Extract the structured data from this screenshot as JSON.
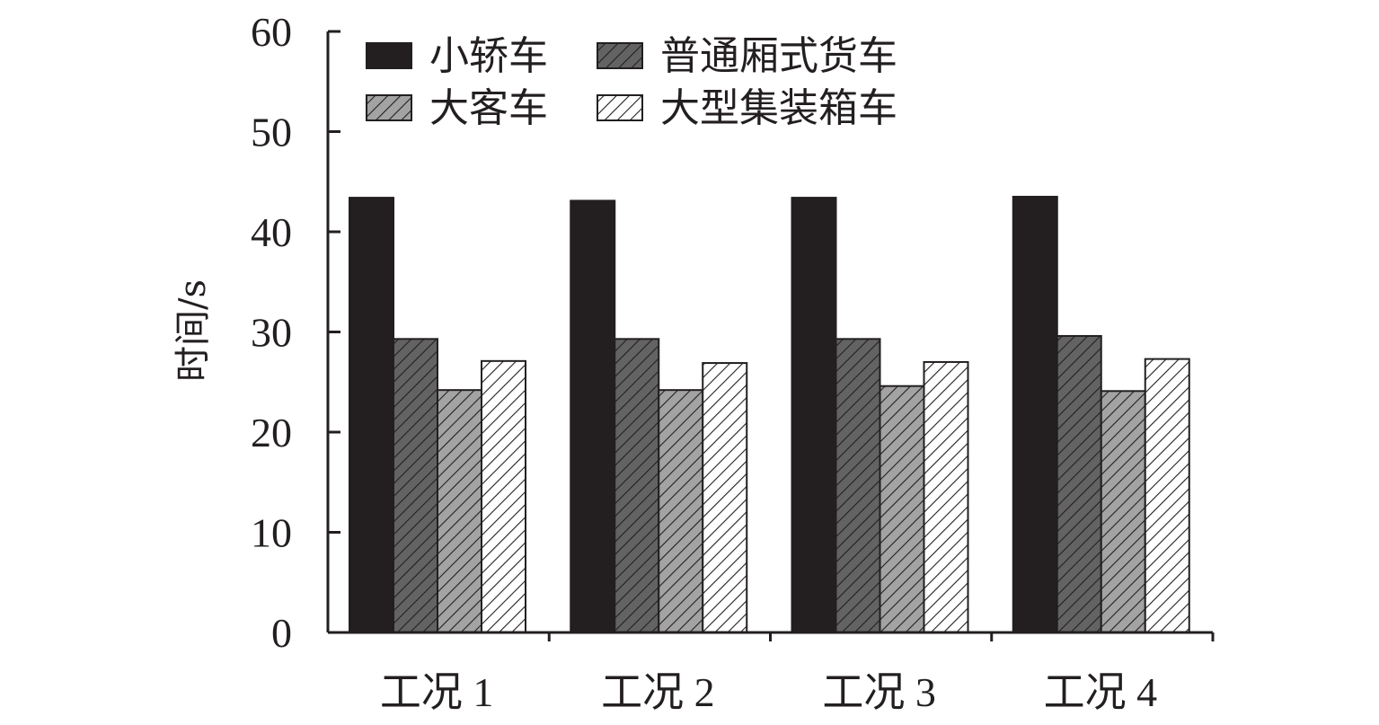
{
  "chart_data": {
    "type": "bar",
    "title": "",
    "xlabel": "",
    "ylabel": "时间/s",
    "ylim": [
      0,
      60
    ],
    "yticks": [
      "0",
      "10",
      "20",
      "30",
      "40",
      "50",
      "60"
    ],
    "categories": [
      "工况 1",
      "工况 2",
      "工况 3",
      "工况 4"
    ],
    "series": [
      {
        "name": "小轿车",
        "color": "#231f20",
        "pattern": "solid",
        "values": [
          43.4,
          43.1,
          43.4,
          43.5
        ]
      },
      {
        "name": "普通厢式货车",
        "color": "#636363",
        "pattern": "hatch",
        "values": [
          29.3,
          29.3,
          29.3,
          29.6
        ]
      },
      {
        "name": "大客车",
        "color": "#a3a3a3",
        "pattern": "hatch",
        "values": [
          24.2,
          24.2,
          24.6,
          24.1
        ]
      },
      {
        "name": "大型集装箱车",
        "color": "#ffffff",
        "pattern": "hatch",
        "values": [
          27.1,
          26.9,
          27.0,
          27.3
        ]
      }
    ],
    "legend": {
      "placement": "top-left",
      "order": [
        "小轿车",
        "普通厢式货车",
        "大客车",
        "大型集装箱车"
      ]
    },
    "grid": false
  }
}
